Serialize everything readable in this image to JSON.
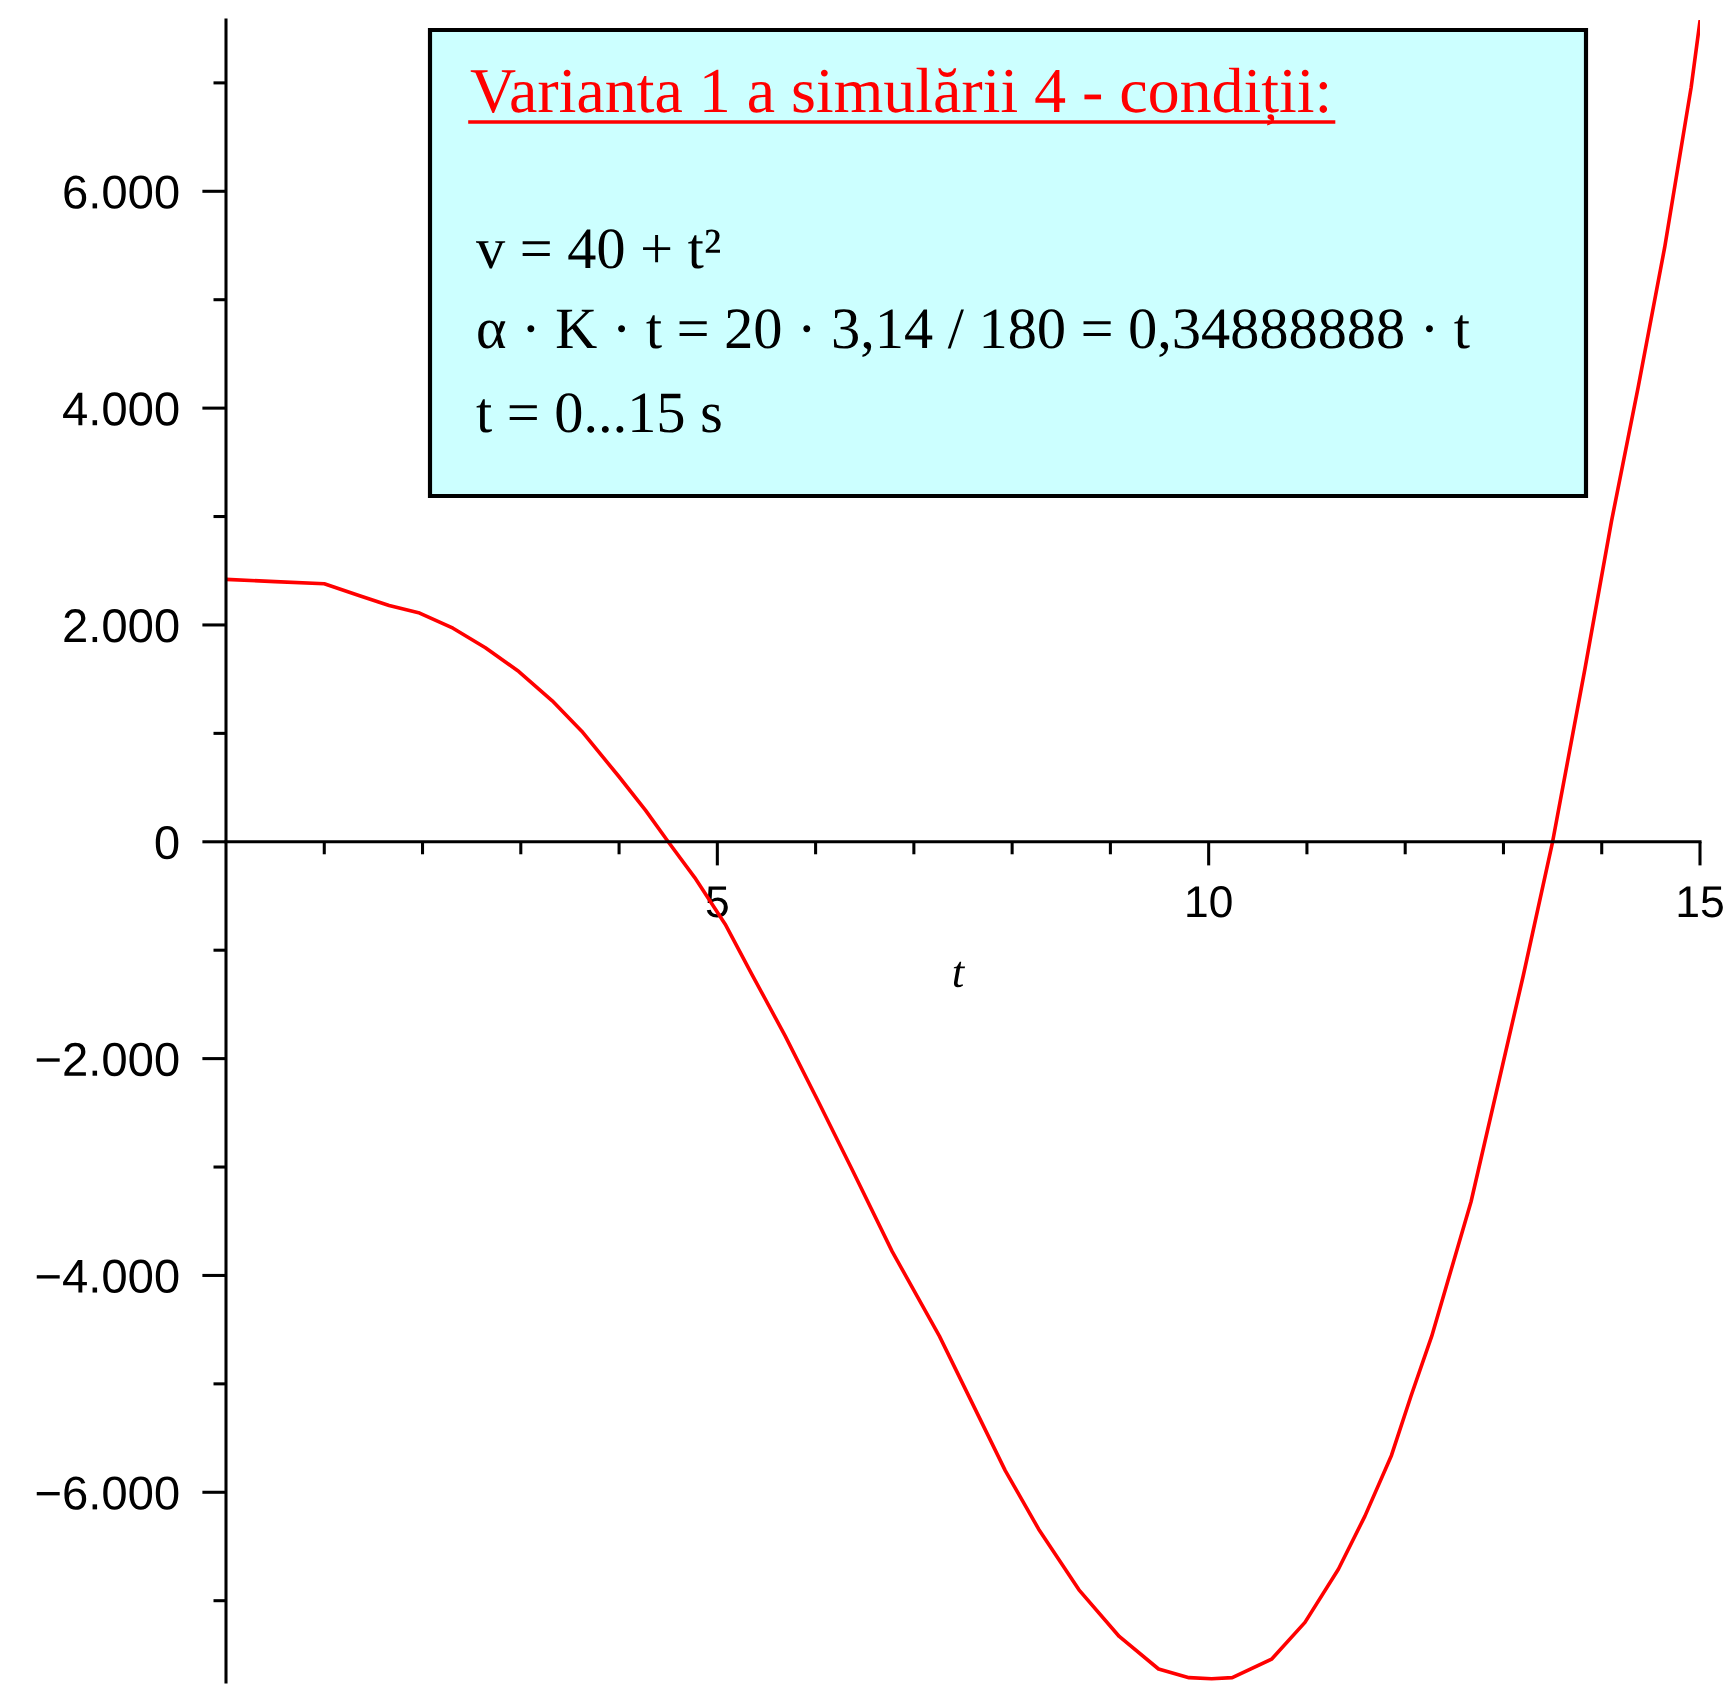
{
  "chart_data": {
    "type": "line",
    "xlabel": "t",
    "annotations": [
      "Varianta 1 a simulării 4 - condiții:",
      "v = 40 + t²",
      "α · K · t = 20 · 3,14 / 180 = 0,34888888 · t",
      "t = 0...15 s"
    ],
    "x": [
      0,
      0.5,
      1.0,
      1.36,
      1.66,
      1.97,
      2.31,
      2.64,
      2.98,
      3.32,
      3.62,
      4.0,
      4.27,
      4.5,
      4.77,
      5.08,
      5.35,
      5.69,
      6.03,
      6.37,
      6.78,
      7.26,
      7.66,
      7.93,
      8.27,
      8.68,
      9.09,
      9.49,
      9.8,
      10.03,
      10.24,
      10.64,
      10.98,
      11.32,
      11.59,
      11.86,
      12.06,
      12.27,
      12.47,
      12.67,
      13.2,
      13.5,
      13.83,
      14.1,
      14.37,
      14.64,
      14.91,
      15.0
    ],
    "series": [
      {
        "color": "#ff0000",
        "values": [
          2420,
          2400,
          2380,
          2270,
          2180,
          2110,
          1970,
          1790,
          1570,
          1300,
          1020,
          600,
          290,
          0,
          -330,
          -760,
          -1220,
          -1790,
          -2400,
          -3020,
          -3780,
          -4560,
          -5300,
          -5800,
          -6340,
          -6900,
          -7330,
          -7630,
          -7710,
          -7720,
          -7710,
          -7540,
          -7200,
          -6710,
          -6220,
          -5660,
          -5110,
          -4560,
          -3940,
          -3320,
          -1240,
          0,
          1600,
          2960,
          4190,
          5480,
          6960,
          7570
        ]
      }
    ],
    "xlim": [
      0,
      15
    ],
    "ylim": [
      -7750,
      7580
    ],
    "xticks": [
      {
        "value": 1,
        "label": null
      },
      {
        "value": 2,
        "label": null
      },
      {
        "value": 3,
        "label": null
      },
      {
        "value": 4,
        "label": null
      },
      5,
      {
        "value": 6,
        "label": null
      },
      {
        "value": 7,
        "label": null
      },
      {
        "value": 8,
        "label": null
      },
      {
        "value": 9,
        "label": null
      },
      10,
      {
        "value": 11,
        "label": null
      },
      {
        "value": 12,
        "label": null
      },
      {
        "value": 13,
        "label": null
      },
      {
        "value": 14,
        "label": null
      },
      15
    ],
    "yticks": [
      {
        "value": -7000,
        "label": null
      },
      {
        "value": -6000,
        "label": "−6.000"
      },
      {
        "value": -5000,
        "label": null
      },
      {
        "value": -4000,
        "label": "−4.000"
      },
      {
        "value": -3000,
        "label": null
      },
      {
        "value": -2000,
        "label": "−2.000"
      },
      {
        "value": -1000,
        "label": null
      },
      0,
      {
        "value": 1000,
        "label": null
      },
      {
        "value": 2000,
        "label": "2.000"
      },
      {
        "value": 3000,
        "label": null
      },
      {
        "value": 4000,
        "label": "4.000"
      },
      {
        "value": 5000,
        "label": null
      },
      {
        "value": 6000,
        "label": "6.000"
      },
      {
        "value": 7000,
        "label": null
      }
    ]
  }
}
